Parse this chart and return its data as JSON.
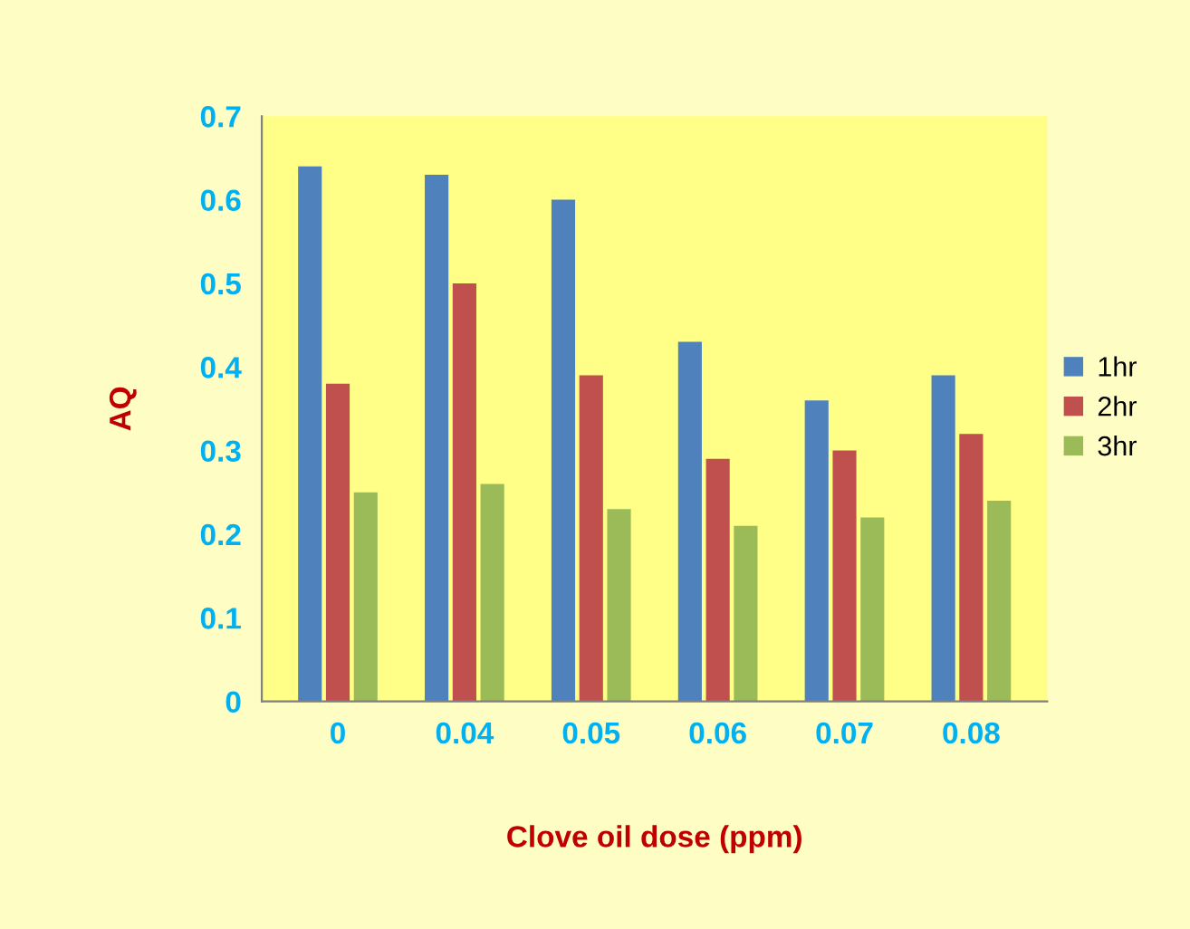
{
  "chart_data": {
    "type": "bar",
    "xlabel": "Clove oil dose (ppm)",
    "ylabel": "AQ",
    "categories": [
      "0",
      "0.04",
      "0.05",
      "0.06",
      "0.07",
      "0.08"
    ],
    "series": [
      {
        "name": "1hr",
        "color": "#4f81bd",
        "values": [
          0.64,
          0.63,
          0.6,
          0.43,
          0.36,
          0.39
        ]
      },
      {
        "name": "2hr",
        "color": "#c0504d",
        "values": [
          0.38,
          0.5,
          0.39,
          0.29,
          0.3,
          0.32
        ]
      },
      {
        "name": "3hr",
        "color": "#9bbb59",
        "values": [
          0.25,
          0.26,
          0.23,
          0.21,
          0.22,
          0.24
        ]
      }
    ],
    "ylim": [
      0,
      0.7
    ],
    "yticks": [
      0,
      0.1,
      0.2,
      0.3,
      0.4,
      0.5,
      0.6,
      0.7
    ],
    "grid": false,
    "legend": "right"
  }
}
